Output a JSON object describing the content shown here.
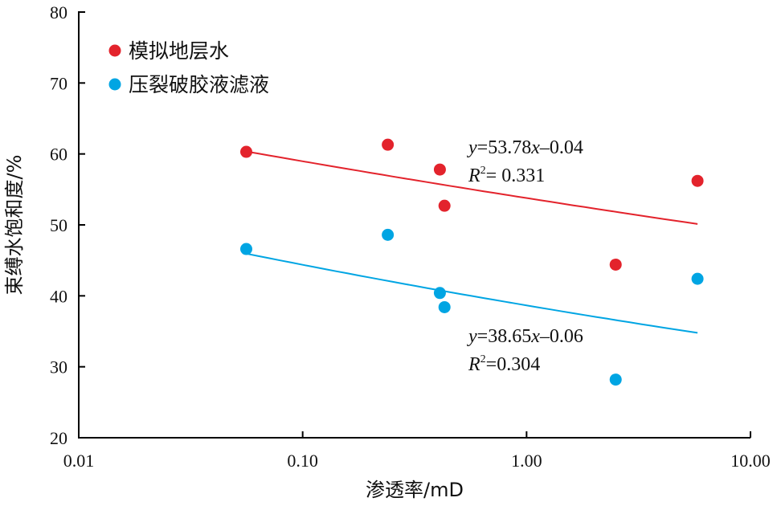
{
  "chart_data": {
    "type": "scatter",
    "xscale": "log",
    "xlim": [
      0.01,
      10
    ],
    "ylim": [
      20,
      80
    ],
    "xticks": [
      0.01,
      0.1,
      1,
      10
    ],
    "xtick_labels": [
      "0.01",
      "0.10",
      "1.00",
      "10.00"
    ],
    "yticks": [
      20,
      30,
      40,
      50,
      60,
      70,
      80
    ],
    "ytick_labels": [
      "20",
      "30",
      "40",
      "50",
      "60",
      "70",
      "80"
    ],
    "xlabel": "渗透率/mD",
    "ylabel": "束缚水饱和度/%",
    "grid": false,
    "legend_position": "top-left",
    "series": [
      {
        "name": "模拟地层水",
        "color": "#e3232c",
        "x": [
          0.056,
          0.24,
          0.41,
          0.43,
          2.5,
          5.8
        ],
        "y": [
          60.3,
          61.3,
          57.8,
          52.7,
          44.4,
          56.2
        ],
        "trendline": {
          "a": 53.78,
          "b": -0.04,
          "x_range": [
            0.056,
            5.8
          ],
          "equation_parts": [
            "y",
            "=53.78",
            "x",
            "–0.04"
          ],
          "r2_parts": [
            "R",
            "2",
            "= 0.331"
          ]
        }
      },
      {
        "name": "压裂破胶液滤液",
        "color": "#00a5e3",
        "x": [
          0.056,
          0.24,
          0.41,
          0.43,
          2.5,
          5.8
        ],
        "y": [
          46.6,
          48.6,
          40.4,
          38.4,
          28.2,
          42.4
        ],
        "trendline": {
          "a": 38.65,
          "b": -0.06,
          "x_range": [
            0.056,
            5.8
          ],
          "equation_parts": [
            "y",
            "=38.65",
            "x",
            "–0.06"
          ],
          "r2_parts": [
            "R",
            "2",
            "=0.304"
          ]
        }
      }
    ]
  }
}
